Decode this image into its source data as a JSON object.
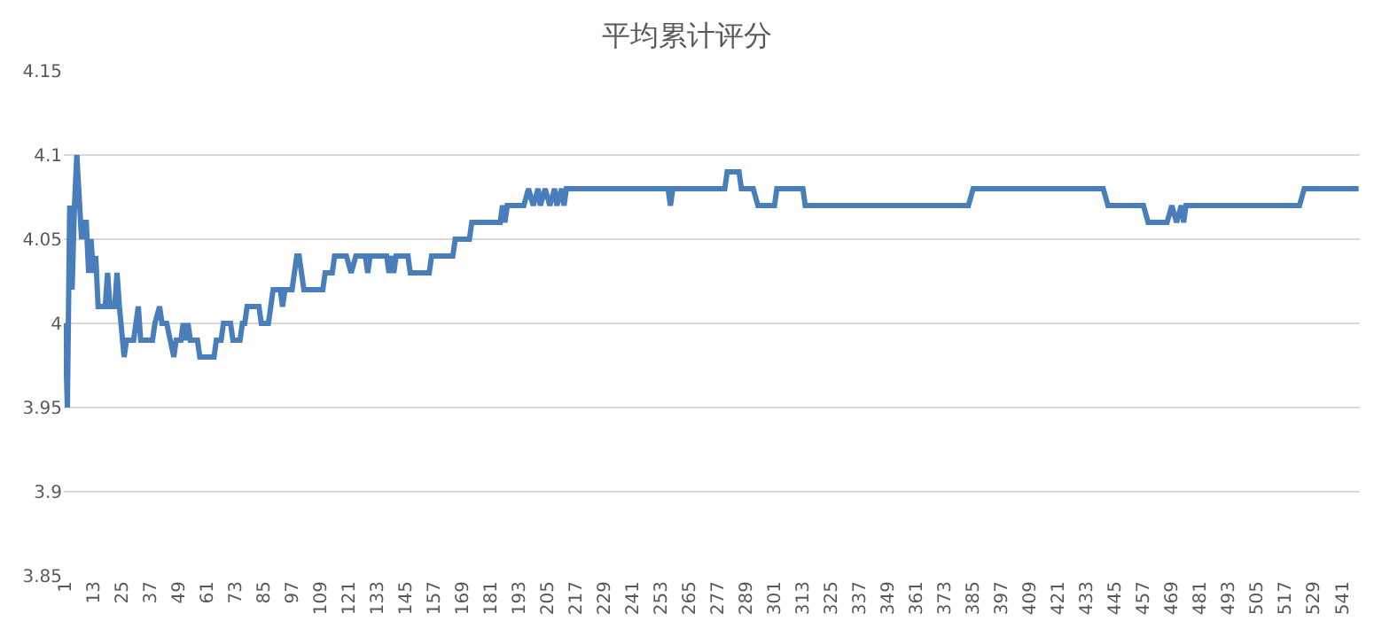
{
  "chart_data": {
    "type": "line",
    "title": "平均累计评分",
    "x": [
      1,
      2,
      3,
      4,
      5,
      6,
      8,
      9,
      10,
      11,
      12,
      13,
      14,
      15,
      18,
      19,
      20,
      22,
      23,
      24,
      26,
      27,
      30,
      32,
      33,
      38,
      39,
      41,
      42,
      44,
      47,
      48,
      50,
      51,
      52,
      53,
      54,
      57,
      58,
      64,
      65,
      67,
      68,
      71,
      72,
      75,
      76,
      77,
      78,
      83,
      84,
      87,
      88,
      89,
      92,
      93,
      94,
      97,
      98,
      99,
      100,
      102,
      110,
      111,
      114,
      115,
      120,
      122,
      124,
      128,
      129,
      130,
      137,
      138,
      139,
      140,
      141,
      146,
      147,
      155,
      156,
      165,
      166,
      172,
      173,
      185,
      186,
      187,
      188,
      195,
      197,
      199,
      201,
      202,
      204,
      206,
      208,
      209,
      211,
      212,
      213,
      256,
      257,
      258,
      280,
      281,
      286,
      287,
      292,
      294,
      301,
      302,
      313,
      314,
      383,
      385,
      440,
      442,
      457,
      459,
      467,
      469,
      471,
      473,
      474,
      475,
      523,
      525,
      548
    ],
    "series": [
      {
        "color": "#4a7ebb",
        "values": [
          4.0,
          3.95,
          4.07,
          4.02,
          4.07,
          4.1,
          4.05,
          4.06,
          4.06,
          4.03,
          4.05,
          4.03,
          4.04,
          4.01,
          4.01,
          4.03,
          4.01,
          4.01,
          4.03,
          4.01,
          3.98,
          3.99,
          3.99,
          4.01,
          3.99,
          3.99,
          4.0,
          4.01,
          4.0,
          4.0,
          3.98,
          3.99,
          3.99,
          4.0,
          3.99,
          4.0,
          3.99,
          3.99,
          3.98,
          3.98,
          3.99,
          3.99,
          4.0,
          4.0,
          3.99,
          3.99,
          4.0,
          4.0,
          4.01,
          4.01,
          4.0,
          4.0,
          4.01,
          4.02,
          4.02,
          4.01,
          4.02,
          4.02,
          4.03,
          4.04,
          4.04,
          4.02,
          4.02,
          4.03,
          4.03,
          4.04,
          4.04,
          4.03,
          4.04,
          4.04,
          4.03,
          4.04,
          4.04,
          4.03,
          4.04,
          4.03,
          4.04,
          4.04,
          4.03,
          4.03,
          4.04,
          4.04,
          4.05,
          4.05,
          4.06,
          4.06,
          4.07,
          4.06,
          4.07,
          4.07,
          4.08,
          4.07,
          4.08,
          4.07,
          4.08,
          4.07,
          4.08,
          4.07,
          4.08,
          4.07,
          4.08,
          4.08,
          4.07,
          4.08,
          4.08,
          4.09,
          4.09,
          4.08,
          4.08,
          4.07,
          4.07,
          4.08,
          4.08,
          4.07,
          4.07,
          4.08,
          4.08,
          4.07,
          4.07,
          4.06,
          4.06,
          4.07,
          4.06,
          4.07,
          4.06,
          4.07,
          4.07,
          4.08,
          4.08
        ]
      }
    ],
    "xlim": [
      0.5,
      548.5
    ],
    "xticks": [
      1,
      13,
      25,
      37,
      49,
      61,
      73,
      85,
      97,
      109,
      121,
      133,
      145,
      157,
      169,
      181,
      193,
      205,
      217,
      229,
      241,
      253,
      265,
      277,
      289,
      301,
      313,
      325,
      337,
      349,
      361,
      373,
      385,
      397,
      409,
      421,
      433,
      445,
      457,
      469,
      481,
      493,
      505,
      517,
      529,
      541
    ],
    "ylim": [
      3.85,
      4.15
    ],
    "yticks": [
      3.85,
      3.9,
      3.95,
      4,
      4.05,
      4.1,
      4.15
    ],
    "grid": "y",
    "marker": "none",
    "line_style": "solid"
  }
}
